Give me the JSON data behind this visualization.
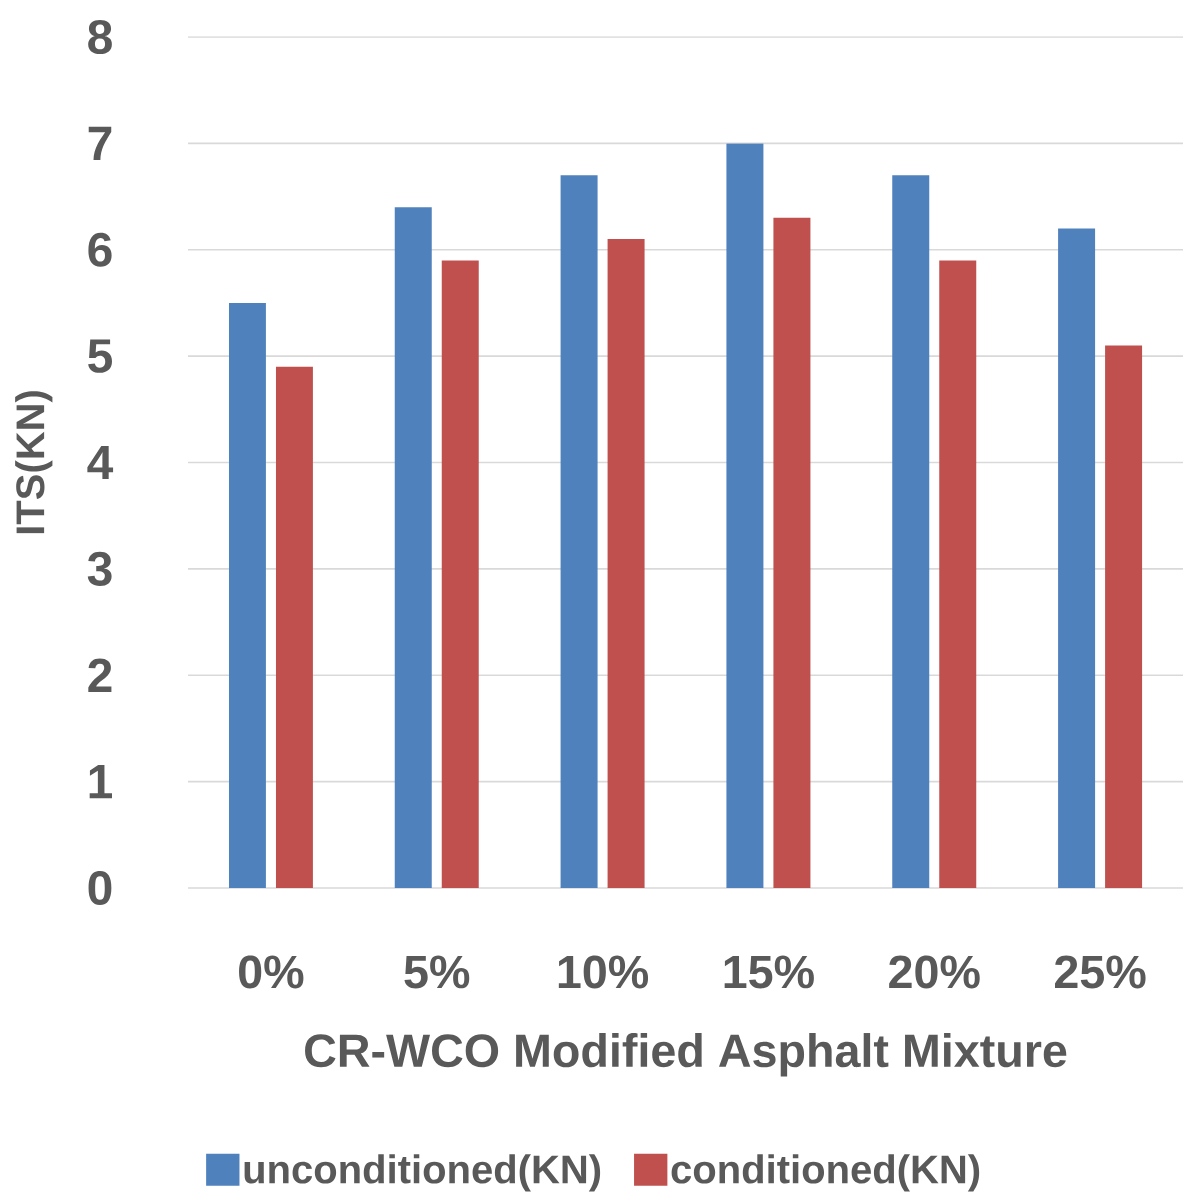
{
  "chart_data": {
    "type": "bar",
    "xlabel": "CR-WCO Modified Asphalt Mixture",
    "ylabel": "ITS(KN)",
    "categories": [
      "0%",
      "5%",
      "10%",
      "15%",
      "20%",
      "25%"
    ],
    "series": [
      {
        "name": "unconditioned(KN)",
        "color": "#4f81bd",
        "values": [
          5.5,
          6.4,
          6.7,
          7.0,
          6.7,
          6.2
        ]
      },
      {
        "name": "conditioned(KN)",
        "color": "#c0504d",
        "values": [
          4.9,
          5.9,
          6.1,
          6.3,
          5.9,
          5.1
        ]
      }
    ],
    "ylim": [
      0,
      8
    ],
    "yticks": [
      0,
      1,
      2,
      3,
      4,
      5,
      6,
      7,
      8
    ],
    "grid": "y",
    "legend": "bottom"
  }
}
